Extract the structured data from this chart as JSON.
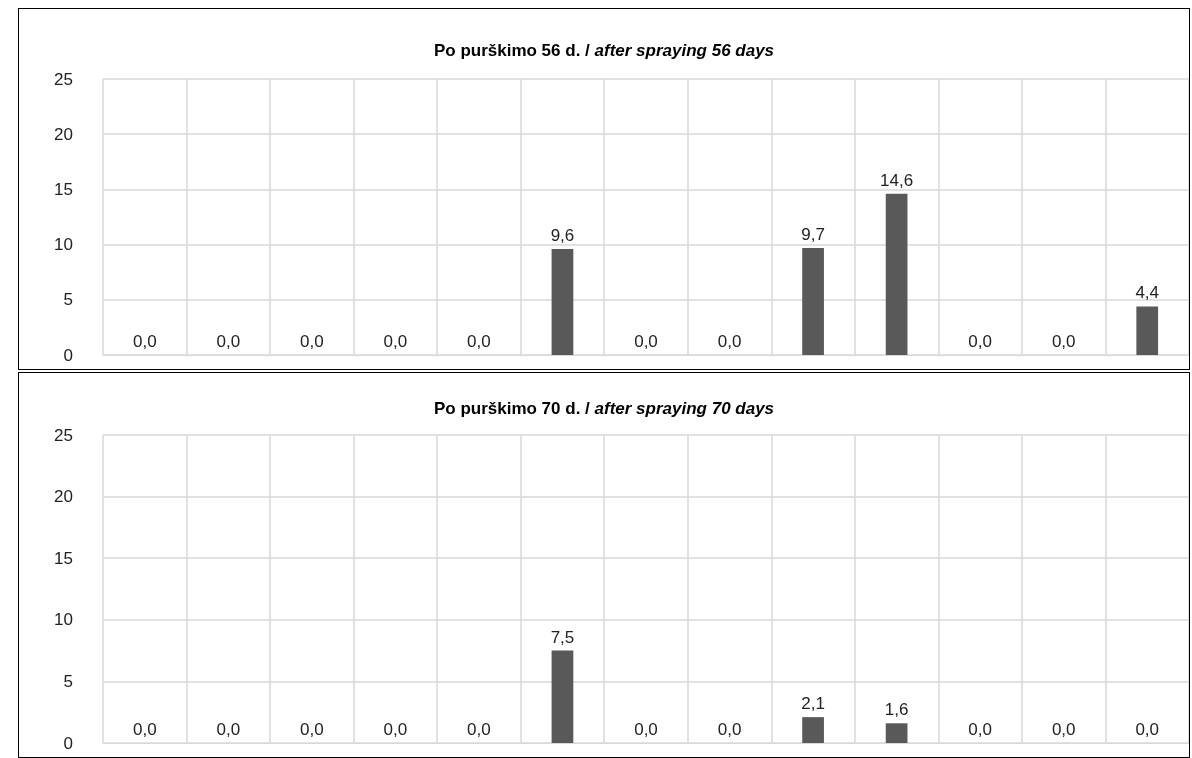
{
  "chart_data": [
    {
      "type": "bar",
      "title": "Po purškimo 56 d. / after spraying 56 days",
      "categories": [
        null,
        null,
        null,
        null,
        null,
        null,
        null,
        null,
        null,
        null,
        null,
        null,
        null
      ],
      "values": [
        0,
        0,
        0,
        0,
        0,
        9.6,
        0,
        0,
        9.7,
        14.6,
        0,
        0,
        4.4
      ],
      "value_labels": [
        "0,0",
        "0,0",
        "0,0",
        "0,0",
        "0,0",
        "9,6",
        "0,0",
        "0,0",
        "9,7",
        "14,6",
        "0,0",
        "0,0",
        "4,4"
      ],
      "color": "#595959",
      "ylim": [
        0,
        25
      ],
      "yticks": [
        0,
        5,
        10,
        15,
        20,
        25
      ],
      "grid": true,
      "tick_labels": "y"
    },
    {
      "type": "bar",
      "title": "Po purškimo 70 d. / after spraying 70 days",
      "categories": [
        null,
        null,
        null,
        null,
        null,
        null,
        null,
        null,
        null,
        null,
        null,
        null,
        null
      ],
      "values": [
        0,
        0,
        0,
        0,
        0,
        7.5,
        0,
        0,
        2.1,
        1.6,
        0,
        0,
        0
      ],
      "value_labels": [
        "0,0",
        "0,0",
        "0,0",
        "0,0",
        "0,0",
        "7,5",
        "0,0",
        "0,0",
        "2,1",
        "1,6",
        "0,0",
        "0,0",
        "0,0"
      ],
      "color": "#595959",
      "ylim": [
        0,
        25
      ],
      "yticks": [
        0,
        5,
        10,
        15,
        20,
        25
      ],
      "grid": true,
      "tick_labels": "y"
    }
  ]
}
